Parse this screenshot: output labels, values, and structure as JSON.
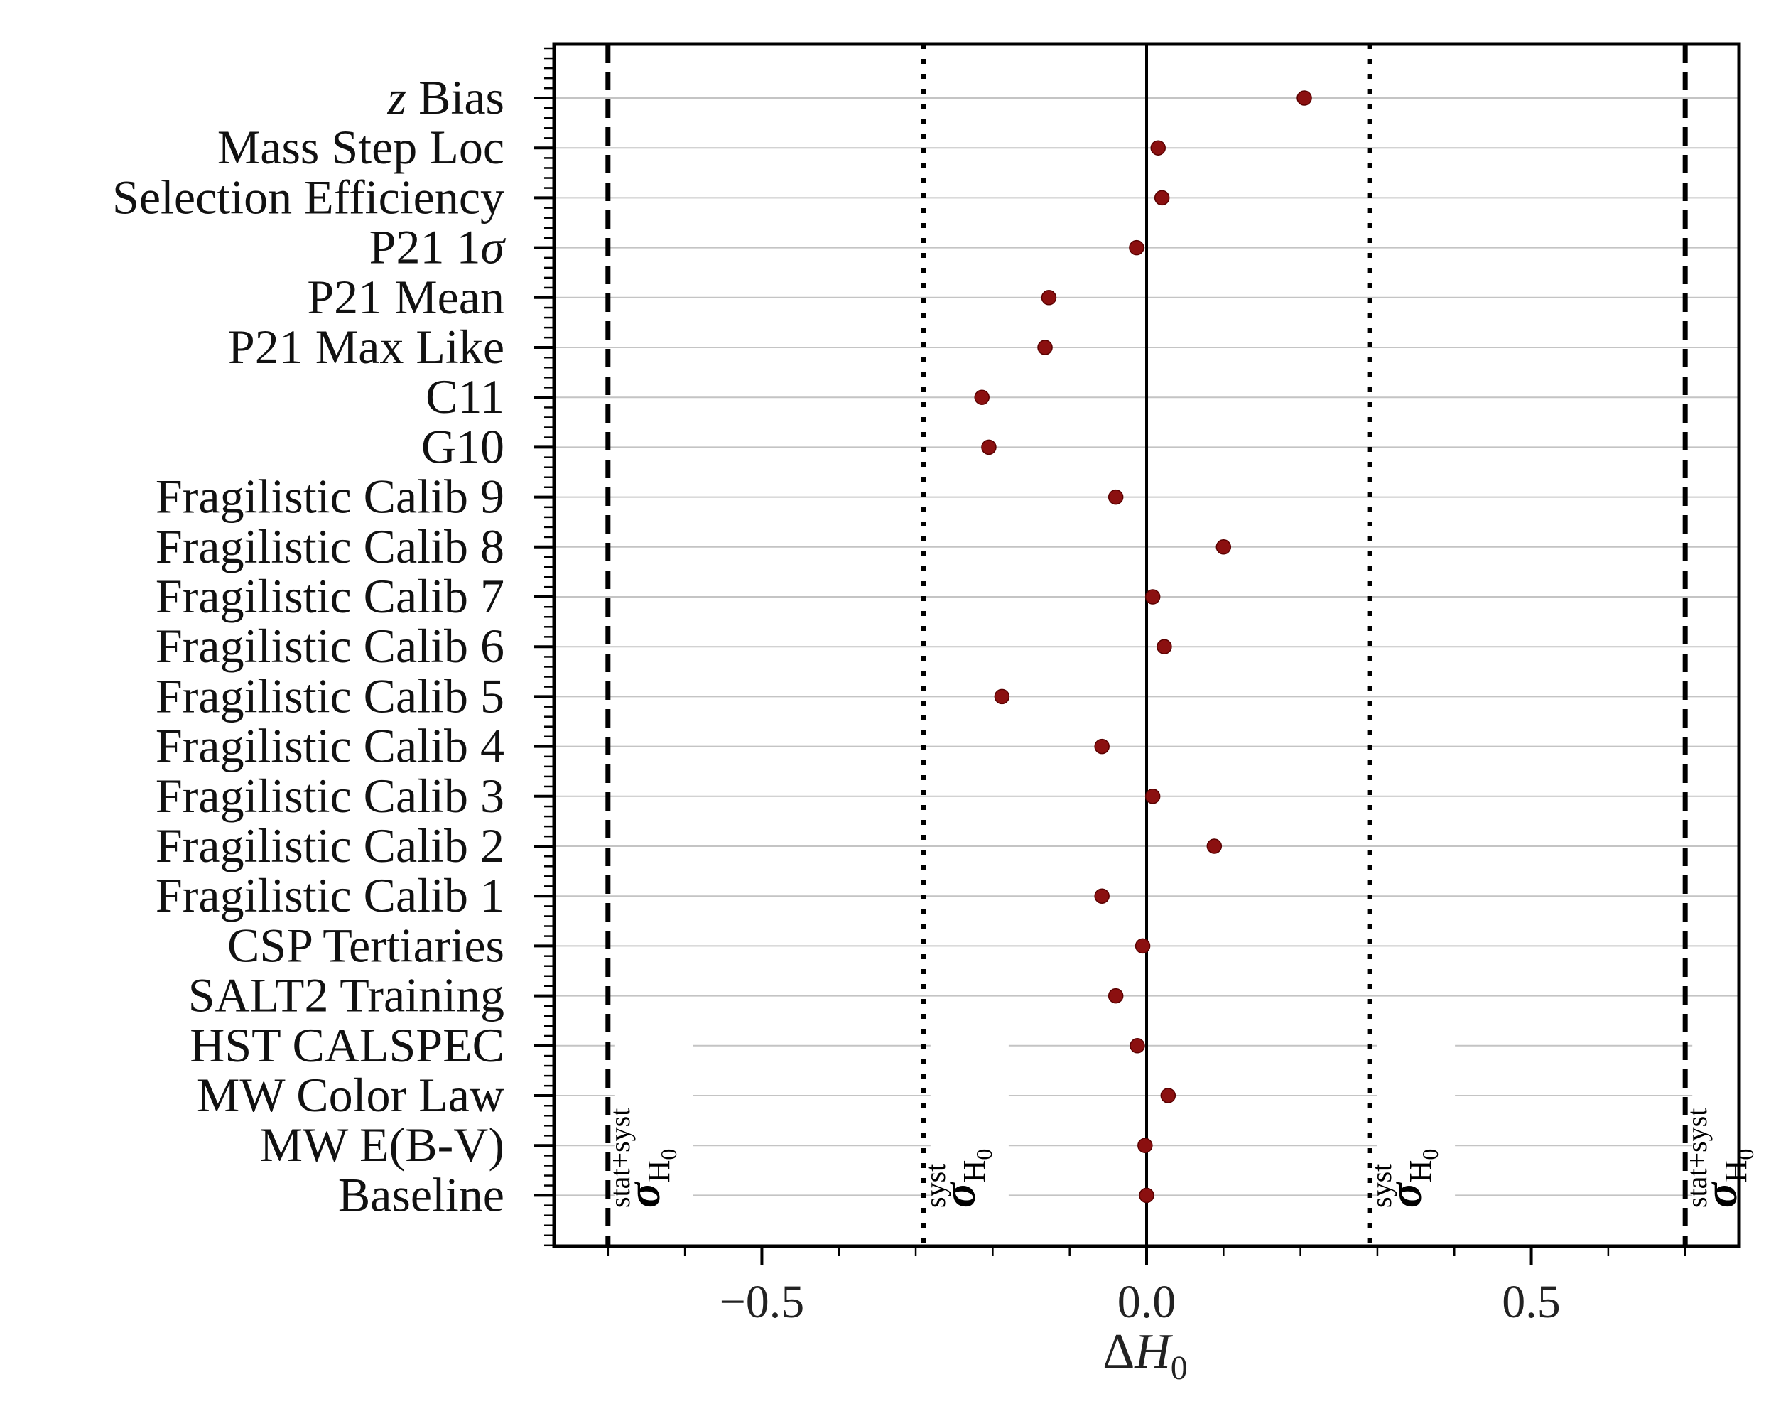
{
  "chart_data": {
    "type": "scatter",
    "xlabel": "ΔH",
    "xlabel_sub": "0",
    "xlim": [
      -0.77,
      0.77
    ],
    "x_ticks": [
      -0.5,
      0.0,
      0.5
    ],
    "x_tick_labels": [
      "−0.5",
      "0.0",
      "0.5"
    ],
    "grid": "horizontal",
    "point_color": "#8b1010",
    "categories": [
      "z Bias",
      "Mass Step Loc",
      "Selection Efficiency",
      "P21 1σ",
      "P21 Mean",
      "P21 Max Like",
      "C11",
      "G10",
      "Fragilistic Calib 9",
      "Fragilistic Calib 8",
      "Fragilistic Calib 7",
      "Fragilistic Calib 6",
      "Fragilistic Calib 5",
      "Fragilistic Calib 4",
      "Fragilistic Calib 3",
      "Fragilistic Calib 2",
      "Fragilistic Calib 1",
      "CSP Tertiaries",
      "SALT2 Training",
      "HST CALSPEC",
      "MW Color Law",
      "MW E(B-V)",
      "Baseline"
    ],
    "values": [
      0.205,
      0.015,
      0.02,
      -0.013,
      -0.127,
      -0.132,
      -0.214,
      -0.205,
      -0.04,
      0.1,
      0.008,
      0.023,
      -0.188,
      -0.058,
      0.008,
      0.088,
      -0.058,
      -0.005,
      -0.04,
      -0.012,
      0.028,
      -0.002,
      0.0
    ],
    "reference_lines": [
      {
        "x": -0.7,
        "style": "dashed",
        "label_main": "σ",
        "label_sub": "H",
        "label_sub2": "0",
        "label_sup": "stat+syst"
      },
      {
        "x": -0.29,
        "style": "dotted",
        "label_main": "σ",
        "label_sub": "H",
        "label_sub2": "0",
        "label_sup": "syst"
      },
      {
        "x": 0.29,
        "style": "dotted",
        "label_main": "σ",
        "label_sub": "H",
        "label_sub2": "0",
        "label_sup": "syst"
      },
      {
        "x": 0.7,
        "style": "dashed",
        "label_main": "σ",
        "label_sub": "H",
        "label_sub2": "0",
        "label_sup": "stat+syst"
      }
    ]
  }
}
